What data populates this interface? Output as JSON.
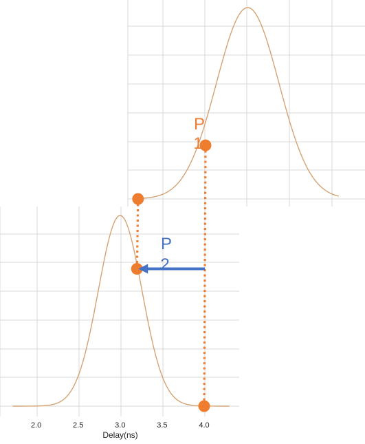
{
  "colors": {
    "curve": "#d4a373",
    "marker": "#ef7d2f",
    "arrow": "#4472c4",
    "grid": "#d9d9d9"
  },
  "annotations": {
    "p1": [
      "P",
      "1"
    ],
    "p2": [
      "P",
      "2"
    ]
  },
  "chart_data": [
    {
      "type": "line",
      "title": "",
      "series": [
        {
          "name": "",
          "kind": "gaussian",
          "mean": 4.5,
          "sd": 0.37
        }
      ],
      "xlim": [
        3.2,
        5.5
      ],
      "ylim": [
        0,
        1.05
      ],
      "grid": true,
      "show_tick_labels": false,
      "points": [
        {
          "label": "",
          "x": 3.2,
          "y": 0.0
        },
        {
          "label": "P1",
          "x": 4.0,
          "y": 0.28
        }
      ]
    },
    {
      "type": "line",
      "title": "",
      "xlabel": "Delay(ns)",
      "x_ticks": [
        "2.0",
        "2.5",
        "3.0",
        "3.5",
        "4.0"
      ],
      "series": [
        {
          "name": "",
          "kind": "gaussian",
          "mean": 3.0,
          "sd": 0.26
        }
      ],
      "xlim": [
        1.6,
        4.4
      ],
      "ylim": [
        0,
        1.05
      ],
      "grid": true,
      "points": [
        {
          "label": "P2",
          "x": 3.2,
          "y": 0.72
        },
        {
          "label": "",
          "x": 4.0,
          "y": 0.0
        }
      ]
    }
  ]
}
